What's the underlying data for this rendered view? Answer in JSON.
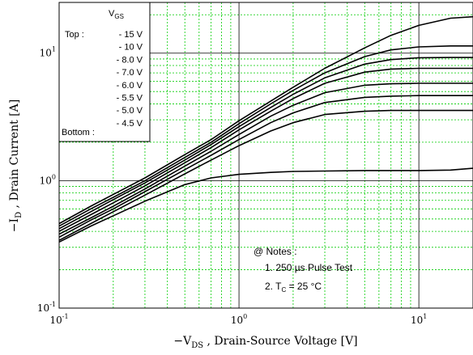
{
  "chart_data": {
    "type": "line",
    "x_scale": "log",
    "y_scale": "log",
    "xlim": [
      0.1,
      20
    ],
    "ylim": [
      0.1,
      25
    ],
    "xlabel": "−V",
    "xlabel_sub": "DS",
    "xlabel_rest": " , Drain-Source Voltage   [V]",
    "ylabel": "−I",
    "ylabel_sub": "D",
    "ylabel_rest": " , Drain Current   [A]",
    "x_ticks": [
      {
        "base": "10",
        "exp": "-1",
        "value": 0.1
      },
      {
        "base": "10",
        "exp": "0",
        "value": 1
      },
      {
        "base": "10",
        "exp": "1",
        "value": 10
      }
    ],
    "y_ticks": [
      {
        "base": "10",
        "exp": "-1",
        "value": 0.1
      },
      {
        "base": "10",
        "exp": "0",
        "value": 1
      },
      {
        "base": "10",
        "exp": "1",
        "value": 10
      }
    ],
    "grid": true,
    "legend": {
      "placement": "top-left",
      "title": "V",
      "title_sub": "GS",
      "top_label": "Top :",
      "bottom_label": "Bottom :",
      "entries": [
        "- 15 V",
        "- 10 V",
        "- 8.0 V",
        "- 7.0 V",
        "- 6.0 V",
        "- 5.5 V",
        "- 5.0 V",
        "- 4.5 V"
      ]
    },
    "notes": {
      "header": "@ Notes :",
      "line1": "1. 250 µs Pulse Test",
      "line2_pre": "2. T",
      "line2_sub": "C",
      "line2_post": " = 25 °C"
    },
    "x": [
      0.1,
      0.15,
      0.2,
      0.3,
      0.5,
      0.7,
      1.0,
      1.5,
      2.0,
      3.0,
      5.0,
      7.0,
      10.0,
      15.0,
      20.0
    ],
    "series": [
      {
        "values": [
          0.46,
          0.63,
          0.78,
          1.05,
          1.6,
          2.1,
          2.95,
          4.2,
          5.4,
          7.6,
          11.0,
          13.8,
          16.5,
          18.8,
          19.3
        ]
      },
      {
        "values": [
          0.44,
          0.6,
          0.74,
          1.0,
          1.52,
          2.0,
          2.8,
          4.0,
          5.1,
          7.0,
          9.4,
          10.6,
          11.2,
          11.4,
          11.4
        ]
      },
      {
        "values": [
          0.42,
          0.57,
          0.71,
          0.96,
          1.45,
          1.92,
          2.65,
          3.75,
          4.75,
          6.4,
          8.2,
          8.9,
          9.2,
          9.25,
          9.25
        ]
      },
      {
        "values": [
          0.4,
          0.54,
          0.67,
          0.91,
          1.38,
          1.82,
          2.5,
          3.5,
          4.4,
          5.8,
          7.1,
          7.5,
          7.6,
          7.6,
          7.6
        ]
      },
      {
        "values": [
          0.38,
          0.51,
          0.63,
          0.86,
          1.3,
          1.7,
          2.3,
          3.2,
          3.9,
          4.9,
          5.6,
          5.75,
          5.8,
          5.8,
          5.8
        ]
      },
      {
        "values": [
          0.36,
          0.49,
          0.6,
          0.82,
          1.22,
          1.58,
          2.1,
          2.85,
          3.4,
          4.1,
          4.5,
          4.6,
          4.65,
          4.65,
          4.65
        ]
      },
      {
        "values": [
          0.34,
          0.46,
          0.57,
          0.77,
          1.13,
          1.45,
          1.88,
          2.45,
          2.85,
          3.3,
          3.5,
          3.55,
          3.55,
          3.55,
          3.55
        ]
      },
      {
        "values": [
          0.33,
          0.44,
          0.53,
          0.69,
          0.93,
          1.05,
          1.12,
          1.16,
          1.18,
          1.19,
          1.2,
          1.2,
          1.2,
          1.21,
          1.25
        ]
      }
    ]
  }
}
